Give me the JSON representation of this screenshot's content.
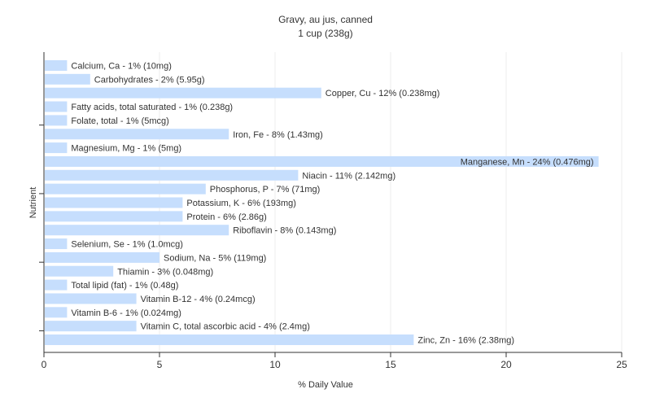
{
  "chart_data": {
    "type": "bar",
    "orientation": "horizontal",
    "title": "Gravy, au jus, canned",
    "subtitle": "1 cup (238g)",
    "xlabel": "% Daily Value",
    "ylabel": "Nutrient",
    "xlim": [
      0,
      25
    ],
    "xticks": [
      0,
      5,
      10,
      15,
      20,
      25
    ],
    "grid": true,
    "bar_color": "#c6defd",
    "categories": [
      "Calcium, Ca",
      "Carbohydrates",
      "Copper, Cu",
      "Fatty acids, total saturated",
      "Folate, total",
      "Iron, Fe",
      "Magnesium, Mg",
      "Manganese, Mn",
      "Niacin",
      "Phosphorus, P",
      "Potassium, K",
      "Protein",
      "Riboflavin",
      "Selenium, Se",
      "Sodium, Na",
      "Thiamin",
      "Total lipid (fat)",
      "Vitamin B-12",
      "Vitamin B-6",
      "Vitamin C, total ascorbic acid",
      "Zinc, Zn"
    ],
    "values": [
      1,
      2,
      12,
      1,
      1,
      8,
      1,
      24,
      11,
      7,
      6,
      6,
      8,
      1,
      5,
      3,
      1,
      4,
      1,
      4,
      16
    ],
    "labels": [
      "Calcium, Ca - 1% (10mg)",
      "Carbohydrates - 2% (5.95g)",
      "Copper, Cu - 12% (0.238mg)",
      "Fatty acids, total saturated - 1% (0.238g)",
      "Folate, total - 1% (5mcg)",
      "Iron, Fe - 8% (1.43mg)",
      "Magnesium, Mg - 1% (5mg)",
      "Manganese, Mn - 24% (0.476mg)",
      "Niacin - 11% (2.142mg)",
      "Phosphorus, P - 7% (71mg)",
      "Potassium, K - 6% (193mg)",
      "Protein - 6% (2.86g)",
      "Riboflavin - 8% (0.143mg)",
      "Selenium, Se - 1% (1.0mcg)",
      "Sodium, Na - 5% (119mg)",
      "Thiamin - 3% (0.048mg)",
      "Total lipid (fat) - 1% (0.48g)",
      "Vitamin B-12 - 4% (0.24mcg)",
      "Vitamin B-6 - 1% (0.024mg)",
      "Vitamin C, total ascorbic acid - 4% (2.4mg)",
      "Zinc, Zn - 16% (2.38mg)"
    ]
  }
}
